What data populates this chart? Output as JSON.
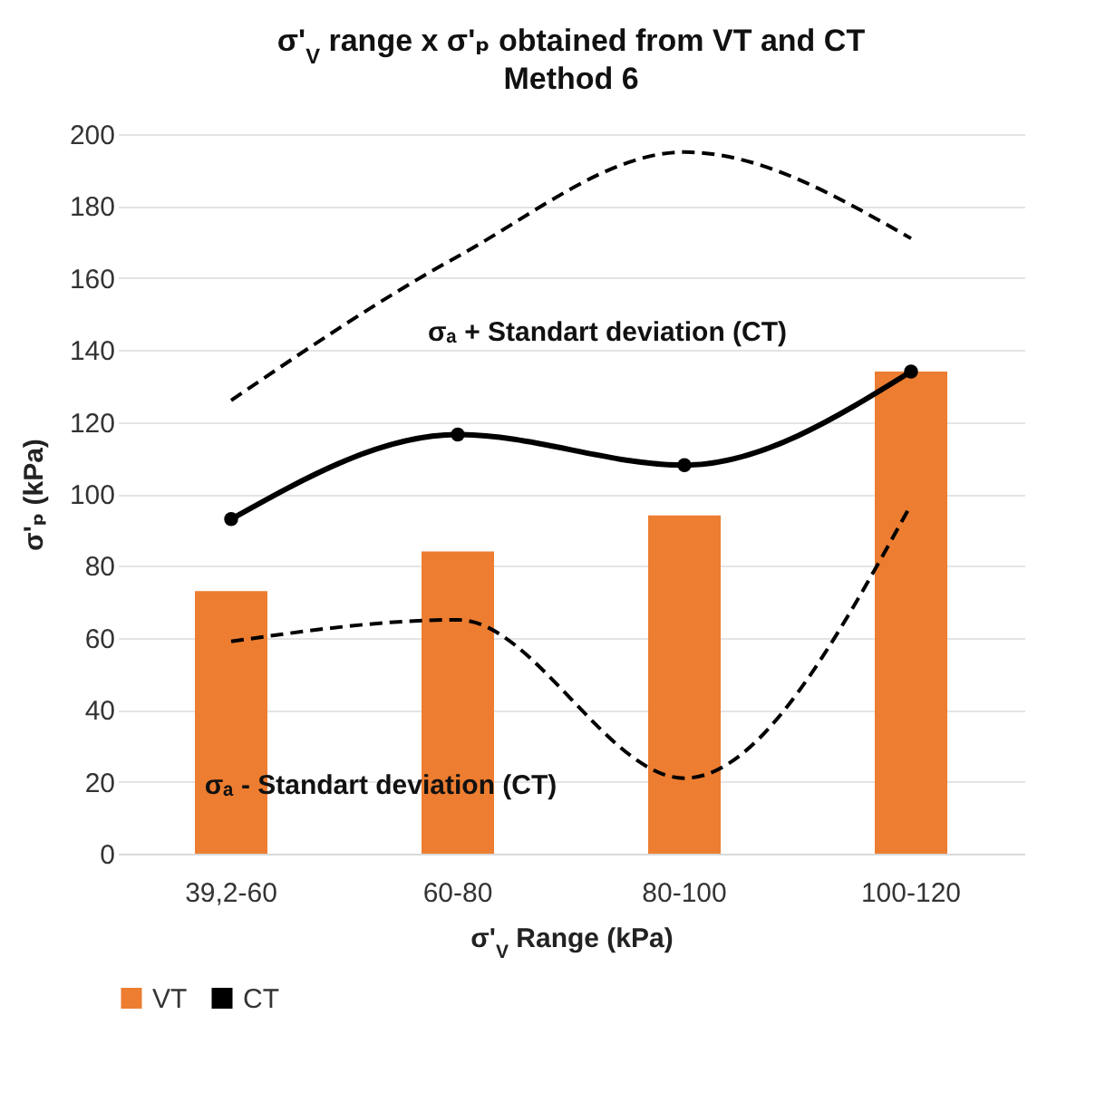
{
  "chart_data": {
    "type": "bar",
    "title": "σ'$_{V}$ range x σ'ₚ obtained from VT and CT",
    "subtitle": "Method 6",
    "xlabel": "σ'$_{V}$ Range (kPa)",
    "ylabel": "σ'ₚ (kPa)",
    "categories": [
      "39,2-60",
      "60-80",
      "80-100",
      "100-120"
    ],
    "series": [
      {
        "name": "VT",
        "color": "#ed7d31",
        "values": [
          73,
          84,
          94,
          134
        ]
      },
      {
        "name": "CT",
        "type": "line",
        "color": "#000000",
        "marker": "circle",
        "line_style": "solid",
        "values": [
          93,
          116.5,
          108,
          134
        ]
      },
      {
        "type": "line",
        "color": "#000000",
        "marker": "none",
        "line_style": "dashed",
        "values": [
          126,
          166,
          195,
          171
        ]
      },
      {
        "type": "line",
        "color": "#000000",
        "marker": "none",
        "line_style": "dashed",
        "values": [
          59,
          65,
          21,
          97
        ]
      }
    ],
    "annotations": [
      "σₐ + Standart deviation (CT)",
      "σₐ - Standart deviation (CT)"
    ],
    "ylim": [
      0,
      200
    ],
    "yticks": [
      0,
      20,
      40,
      60,
      80,
      100,
      120,
      140,
      160,
      180,
      200
    ],
    "grid": "y",
    "legend": "bottom"
  }
}
